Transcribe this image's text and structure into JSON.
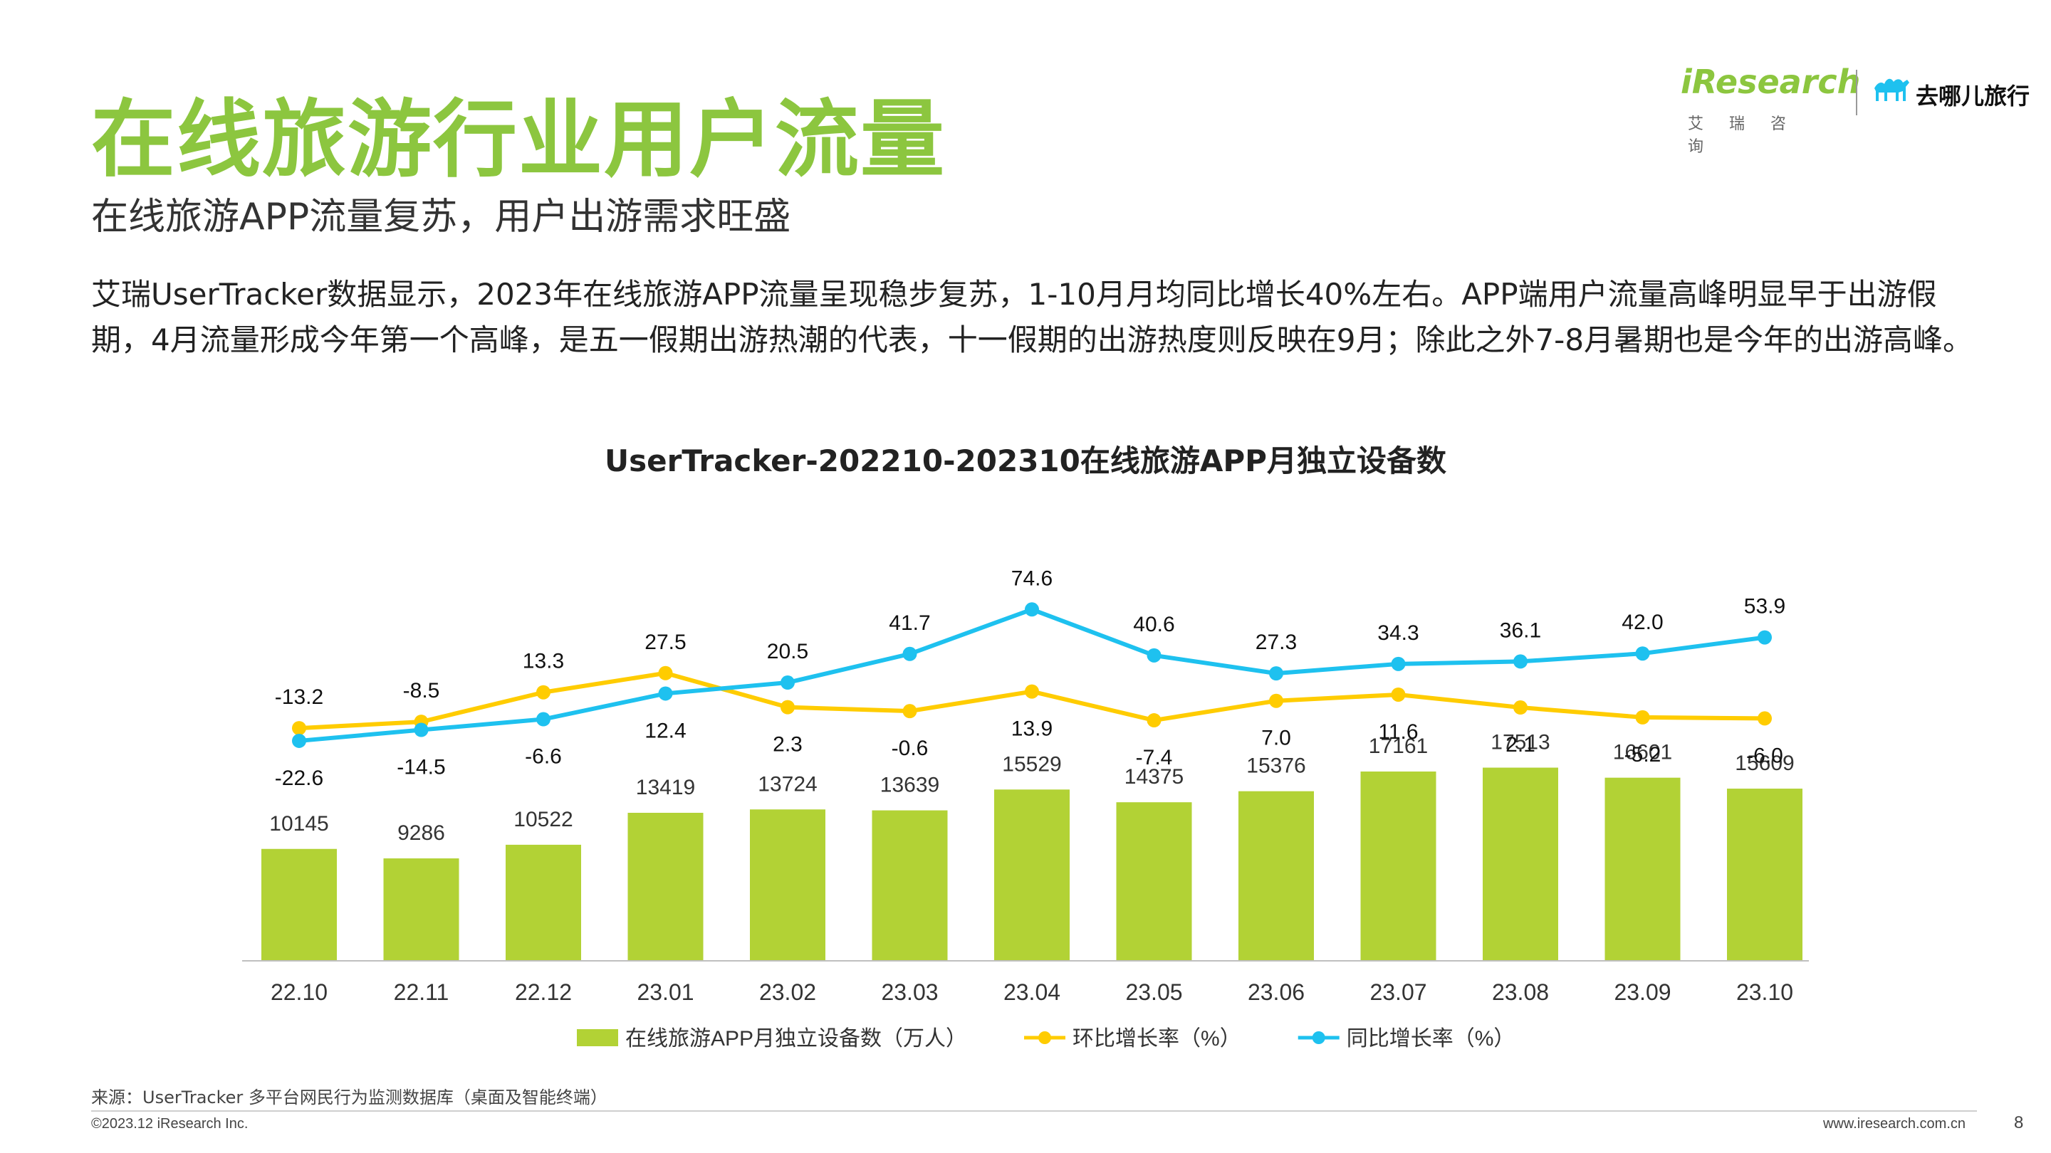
{
  "header": {
    "title": "在线旅游行业用户流量",
    "subtitle": "在线旅游APP流量复苏，用户出游需求旺盛",
    "description": "艾瑞UserTracker数据显示，2023年在线旅游APP流量呈现稳步复苏，1-10月月均同比增长40%左右。APP端用户流量高峰明显早于出游假期，4月流量形成今年第一个高峰，是五一假期出游热潮的代表，十一假期的出游热度则反映在9月；除此之外7-8月暑期也是今年的出游高峰。"
  },
  "logos": {
    "iresearch": "iResearch",
    "iresearch_sub": "艾瑞咨询",
    "qunar": "去哪儿旅行"
  },
  "chart_data": {
    "type": "bar",
    "title": "UserTracker-202210-202310在线旅游APP月独立设备数",
    "categories": [
      "22.10",
      "22.11",
      "22.12",
      "23.01",
      "23.02",
      "23.03",
      "23.04",
      "23.05",
      "23.06",
      "23.07",
      "23.08",
      "23.09",
      "23.10"
    ],
    "series": [
      {
        "name": "在线旅游APP月独立设备数（万人）",
        "type": "bar",
        "color": "#b2d235",
        "values": [
          10145,
          9286,
          10522,
          13419,
          13724,
          13639,
          15529,
          14375,
          15376,
          17161,
          17513,
          16601,
          15609
        ]
      },
      {
        "name": "环比增长率（%）",
        "type": "line",
        "color": "#ffcc00",
        "values": [
          -13.2,
          -8.5,
          13.3,
          27.5,
          2.3,
          -0.6,
          13.9,
          -7.4,
          7.0,
          11.6,
          2.1,
          -5.2,
          -6.0
        ]
      },
      {
        "name": "同比增长率（%）",
        "type": "line",
        "color": "#1ec1ef",
        "values": [
          -22.6,
          -14.5,
          -6.6,
          12.4,
          20.5,
          41.7,
          74.6,
          40.6,
          27.3,
          34.3,
          36.1,
          42.0,
          53.9
        ]
      }
    ],
    "legend_position": "bottom",
    "grid": false
  },
  "footer": {
    "source": "来源：UserTracker 多平台网民行为监测数据库（桌面及智能终端）",
    "copyright": "©2023.12 iResearch Inc.",
    "website": "www.iresearch.com.cn",
    "page": "8"
  }
}
